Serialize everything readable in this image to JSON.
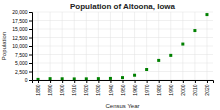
{
  "chart_data": {
    "type": "scatter",
    "title": "Population of Altoona, Iowa",
    "xlabel": "Census Year",
    "ylabel": "Population",
    "x": [
      1880,
      1890,
      1900,
      1910,
      1920,
      1930,
      1940,
      1950,
      1960,
      1970,
      1980,
      1990,
      2000,
      2010,
      2020
    ],
    "values": [
      179,
      397,
      361,
      322,
      340,
      401,
      466,
      700,
      1404,
      3085,
      5764,
      7242,
      10571,
      14541,
      19240
    ],
    "color": "#008000",
    "marker": "square",
    "xlim": [
      1875,
      2025
    ],
    "ylim": [
      0,
      20000
    ],
    "xticks": [
      1880,
      1890,
      1900,
      1910,
      1920,
      1930,
      1940,
      1950,
      1960,
      1970,
      1980,
      1990,
      2000,
      2010,
      2020
    ],
    "yticks": [
      0,
      {
        "value": 2500,
        "label": "2,500"
      },
      {
        "value": 5000,
        "label": "5,000"
      },
      {
        "value": 7500,
        "label": "7,500"
      },
      {
        "value": 10000,
        "label": "10,000"
      },
      {
        "value": 12500,
        "label": "12,500"
      },
      {
        "value": 15000,
        "label": "15,000"
      },
      {
        "value": 17500,
        "label": "17,500"
      },
      {
        "value": 20000,
        "label": "20,000"
      }
    ],
    "grid": true
  }
}
